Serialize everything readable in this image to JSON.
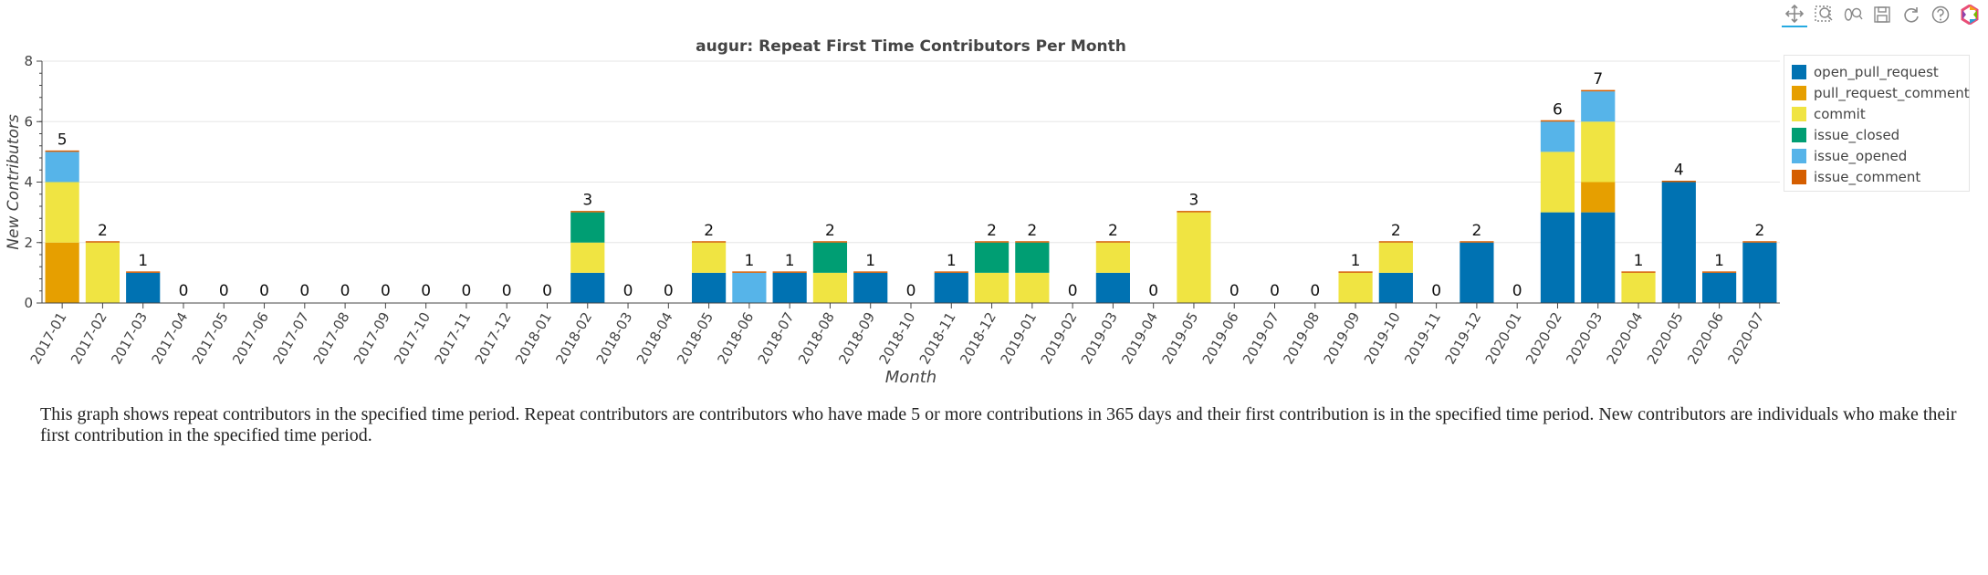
{
  "toolbar": {
    "tools": [
      {
        "name": "pan-icon",
        "active": true
      },
      {
        "name": "box-zoom-icon",
        "active": false
      },
      {
        "name": "wheel-zoom-icon",
        "active": false
      },
      {
        "name": "save-icon",
        "active": false
      },
      {
        "name": "reset-icon",
        "active": false
      },
      {
        "name": "help-icon",
        "active": false
      },
      {
        "name": "bokeh-logo-icon",
        "active": false
      }
    ]
  },
  "chart_data": {
    "type": "bar",
    "stacked": true,
    "title": "augur: Repeat First Time Contributors Per Month",
    "xlabel": "Month",
    "ylabel": "New Contributors",
    "ylim": [
      0,
      8
    ],
    "yticks": [
      0,
      2,
      4,
      6,
      8
    ],
    "grid": true,
    "legend_position": "top-right",
    "categories": [
      "2017-01",
      "2017-02",
      "2017-03",
      "2017-04",
      "2017-05",
      "2017-06",
      "2017-07",
      "2017-08",
      "2017-09",
      "2017-10",
      "2017-11",
      "2017-12",
      "2018-01",
      "2018-02",
      "2018-03",
      "2018-04",
      "2018-05",
      "2018-06",
      "2018-07",
      "2018-08",
      "2018-09",
      "2018-10",
      "2018-11",
      "2018-12",
      "2019-01",
      "2019-02",
      "2019-03",
      "2019-04",
      "2019-05",
      "2019-06",
      "2019-07",
      "2019-08",
      "2019-09",
      "2019-10",
      "2019-11",
      "2019-12",
      "2020-01",
      "2020-02",
      "2020-03",
      "2020-04",
      "2020-05",
      "2020-06",
      "2020-07"
    ],
    "totals": [
      5,
      2,
      1,
      0,
      0,
      0,
      0,
      0,
      0,
      0,
      0,
      0,
      0,
      3,
      0,
      0,
      2,
      1,
      1,
      2,
      1,
      0,
      1,
      2,
      2,
      0,
      2,
      0,
      3,
      0,
      0,
      0,
      1,
      2,
      0,
      2,
      0,
      6,
      7,
      1,
      4,
      1,
      2
    ],
    "series": [
      {
        "name": "open_pull_request",
        "color": "#0072b2",
        "values": [
          0,
          0,
          1,
          0,
          0,
          0,
          0,
          0,
          0,
          0,
          0,
          0,
          0,
          1,
          0,
          0,
          1,
          0,
          1,
          0,
          1,
          0,
          1,
          0,
          0,
          0,
          1,
          0,
          0,
          0,
          0,
          0,
          0,
          1,
          0,
          2,
          0,
          3,
          3,
          0,
          4,
          1,
          2
        ]
      },
      {
        "name": "pull_request_comment",
        "color": "#e69f00",
        "values": [
          2,
          0,
          0,
          0,
          0,
          0,
          0,
          0,
          0,
          0,
          0,
          0,
          0,
          0,
          0,
          0,
          0,
          0,
          0,
          0,
          0,
          0,
          0,
          0,
          0,
          0,
          0,
          0,
          0,
          0,
          0,
          0,
          0,
          0,
          0,
          0,
          0,
          0,
          1,
          0,
          0,
          0,
          0
        ]
      },
      {
        "name": "commit",
        "color": "#f0e442",
        "values": [
          2,
          2,
          0,
          0,
          0,
          0,
          0,
          0,
          0,
          0,
          0,
          0,
          0,
          1,
          0,
          0,
          1,
          0,
          0,
          1,
          0,
          0,
          0,
          1,
          1,
          0,
          1,
          0,
          3,
          0,
          0,
          0,
          1,
          1,
          0,
          0,
          0,
          2,
          2,
          1,
          0,
          0,
          0
        ]
      },
      {
        "name": "issue_closed",
        "color": "#009e73",
        "values": [
          0,
          0,
          0,
          0,
          0,
          0,
          0,
          0,
          0,
          0,
          0,
          0,
          0,
          1,
          0,
          0,
          0,
          0,
          0,
          1,
          0,
          0,
          0,
          1,
          1,
          0,
          0,
          0,
          0,
          0,
          0,
          0,
          0,
          0,
          0,
          0,
          0,
          0,
          0,
          0,
          0,
          0,
          0
        ]
      },
      {
        "name": "issue_opened",
        "color": "#56b4e9",
        "values": [
          1,
          0,
          0,
          0,
          0,
          0,
          0,
          0,
          0,
          0,
          0,
          0,
          0,
          0,
          0,
          0,
          0,
          1,
          0,
          0,
          0,
          0,
          0,
          0,
          0,
          0,
          0,
          0,
          0,
          0,
          0,
          0,
          0,
          0,
          0,
          0,
          0,
          1,
          1,
          0,
          0,
          0,
          0
        ]
      },
      {
        "name": "issue_comment",
        "color": "#d55e00",
        "values": [
          0,
          0,
          0,
          0,
          0,
          0,
          0,
          0,
          0,
          0,
          0,
          0,
          0,
          0,
          0,
          0,
          0,
          0,
          0,
          0,
          0,
          0,
          0,
          0,
          0,
          0,
          0,
          0,
          0,
          0,
          0,
          0,
          0,
          0,
          0,
          0,
          0,
          0,
          0,
          0,
          0,
          0,
          0
        ]
      }
    ]
  },
  "description": "This graph shows repeat contributors in the specified time period. Repeat contributors are contributors who have made 5 or more contributions in 365 days and their first contribution is in the specified time period. New contributors are individuals who make their first contribution in the specified time period."
}
